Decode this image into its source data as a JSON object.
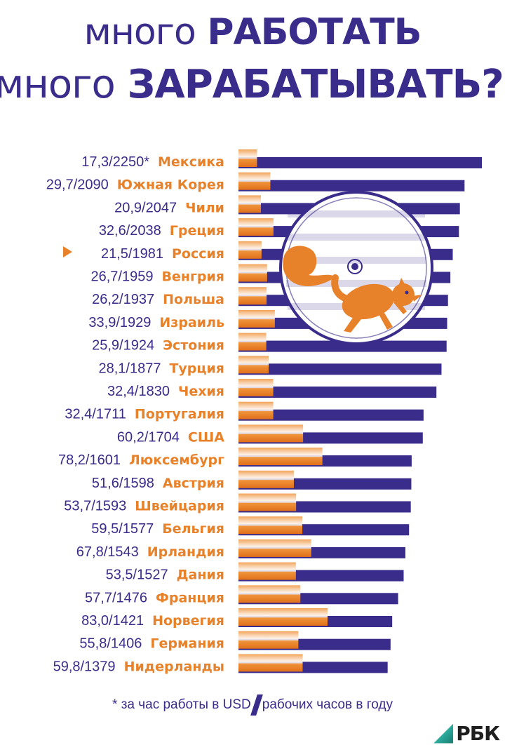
{
  "title": {
    "line1_light": "много",
    "line1_bold": "РАБОТАТЬ",
    "line2_light": "много",
    "line2_bold": "ЗАРАБАТЫВАТЬ?"
  },
  "chart_data": {
    "type": "bar",
    "orientation": "horizontal",
    "title": "",
    "highlight": "Россия",
    "categories": [
      "Мексика",
      "Южная Корея",
      "Чили",
      "Греция",
      "Россия",
      "Венгрия",
      "Польша",
      "Израиль",
      "Эстония",
      "Турция",
      "Чехия",
      "Португалия",
      "США",
      "Люксембург",
      "Австрия",
      "Швейцария",
      "Бельгия",
      "Ирландия",
      "Дания",
      "Франция",
      "Норвегия",
      "Германия",
      "Нидерланды"
    ],
    "value_labels": [
      "17,3/2250*",
      "29,7/2090",
      "20,9/2047",
      "32,6/2038",
      "21,5/1981",
      "26,7/1959",
      "26,2/1937",
      "33,9/1929",
      "25,9/1924",
      "28,1/1877",
      "32,4/1830",
      "32,4/1711",
      "60,2/1704",
      "78,2/1601",
      "51,6/1598",
      "53,7/1593",
      "59,5/1577",
      "67,8/1543",
      "53,5/1527",
      "57,7/1476",
      "83,0/1421",
      "55,8/1406",
      "59,8/1379"
    ],
    "series": [
      {
        "name": "за час работы в USD",
        "color": "#e8822a",
        "values": [
          17.3,
          29.7,
          20.9,
          32.6,
          21.5,
          26.7,
          26.2,
          33.9,
          25.9,
          28.1,
          32.4,
          32.4,
          60.2,
          78.2,
          51.6,
          53.7,
          59.5,
          67.8,
          53.5,
          57.7,
          83.0,
          55.8,
          59.8
        ]
      },
      {
        "name": "рабочих часов в году",
        "color": "#3a2c8a",
        "values": [
          2250,
          2090,
          2047,
          2038,
          1981,
          1959,
          1937,
          1929,
          1924,
          1877,
          1830,
          1711,
          1704,
          1601,
          1598,
          1593,
          1577,
          1543,
          1527,
          1476,
          1421,
          1406,
          1379
        ]
      }
    ]
  },
  "footnote": {
    "left": "* за час работы в USD",
    "right": "рабочих часов в году"
  },
  "logo": {
    "text": "РБК"
  }
}
